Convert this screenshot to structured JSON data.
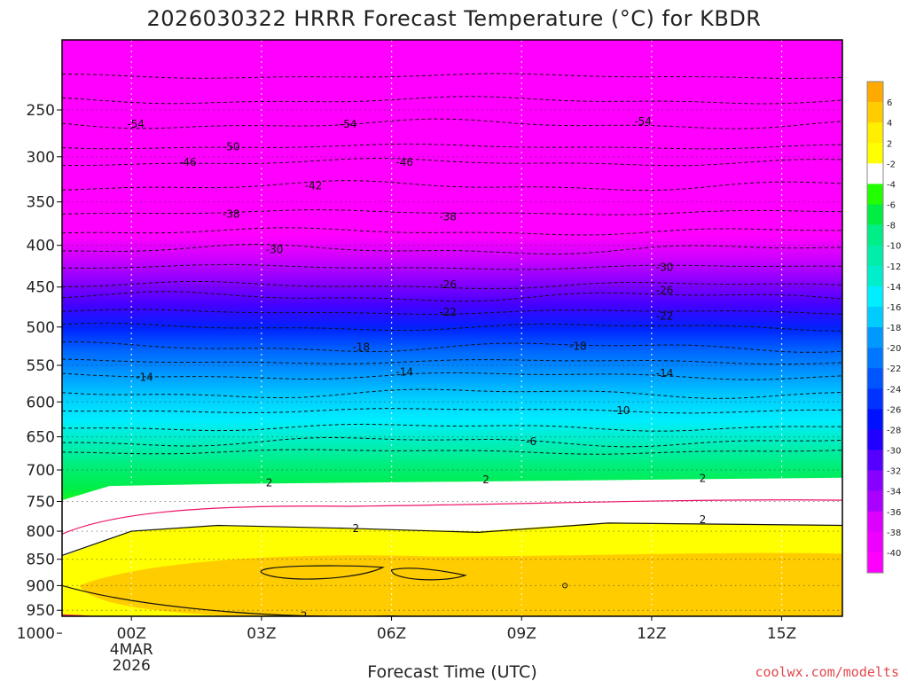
{
  "chart_data": {
    "type": "heatmap",
    "title": "2026030322 HRRR Forecast Temperature (°C) for KBDR",
    "xlabel": "Forecast Time (UTC)",
    "ylabel": "",
    "source": "coolwx.com/modelts",
    "x_range_hours": [
      -1.6,
      16.4
    ],
    "y_range_hPa": [
      1030,
      200
    ],
    "x_ticks": [
      {
        "hour": 0,
        "label": "00Z",
        "sub1": "4MAR",
        "sub2": "2026"
      },
      {
        "hour": 3,
        "label": "03Z"
      },
      {
        "hour": 6,
        "label": "06Z"
      },
      {
        "hour": 9,
        "label": "09Z"
      },
      {
        "hour": 12,
        "label": "12Z"
      },
      {
        "hour": 15,
        "label": "15Z"
      }
    ],
    "y_ticks": [
      250,
      300,
      350,
      400,
      450,
      500,
      550,
      600,
      650,
      700,
      750,
      800,
      850,
      900,
      950,
      1000
    ],
    "colorbar": {
      "levels": [
        "6",
        "4",
        "2",
        "-2",
        "-4",
        "-6",
        "-8",
        "-10",
        "-12",
        "-14",
        "-16",
        "-18",
        "-20",
        "-22",
        "-24",
        "-26",
        "-28",
        "-30",
        "-32",
        "-34",
        "-36",
        "-38",
        "-40"
      ],
      "colors": [
        "#ffaa00",
        "#ffcc00",
        "#ffee00",
        "#ffff00",
        "#ffffff",
        "#22ff00",
        "#00ee44",
        "#00ee88",
        "#00eeaa",
        "#00eecc",
        "#00eeff",
        "#00ccff",
        "#0099ff",
        "#0077ff",
        "#0055ff",
        "#0033ff",
        "#0011ff",
        "#2200ff",
        "#5500ff",
        "#8800ff",
        "#aa00ff",
        "#dd00ff",
        "#ee00ff",
        "#ff00ff"
      ]
    },
    "band_colors": {
      "ground": "#b5602c",
      "warm_core": "#ffcc00",
      "warm": "#ffff00",
      "near_freezing": "#ffffff"
    },
    "contour_labels": [
      {
        "value": "-54",
        "points": [
          [
            -0.1,
            265
          ],
          [
            4.8,
            265
          ],
          [
            11.6,
            262
          ]
        ]
      },
      {
        "value": "-50",
        "points": [
          [
            2.1,
            289
          ]
        ]
      },
      {
        "value": "-46",
        "points": [
          [
            1.1,
            306
          ],
          [
            6.1,
            306
          ]
        ]
      },
      {
        "value": "-42",
        "points": [
          [
            4.0,
            332
          ]
        ]
      },
      {
        "value": "-38",
        "points": [
          [
            2.1,
            364
          ],
          [
            7.1,
            367
          ]
        ]
      },
      {
        "value": "-30",
        "points": [
          [
            3.1,
            405
          ],
          [
            12.1,
            426
          ]
        ]
      },
      {
        "value": "-26",
        "points": [
          [
            7.1,
            447
          ],
          [
            12.1,
            454
          ]
        ]
      },
      {
        "value": "-22",
        "points": [
          [
            7.1,
            481
          ],
          [
            12.1,
            486
          ]
        ]
      },
      {
        "value": "-18",
        "points": [
          [
            5.1,
            526
          ],
          [
            10.1,
            525
          ]
        ]
      },
      {
        "value": "-14",
        "points": [
          [
            0.1,
            566
          ],
          [
            6.1,
            559
          ],
          [
            12.1,
            561
          ]
        ]
      },
      {
        "value": "-10",
        "points": [
          [
            11.1,
            612
          ]
        ]
      },
      {
        "value": "-6",
        "points": [
          [
            9.1,
            657
          ]
        ]
      },
      {
        "value": "2",
        "points": [
          [
            3.1,
            720
          ],
          [
            8.1,
            715
          ],
          [
            13.1,
            713
          ],
          [
            13.1,
            780
          ],
          [
            5.1,
            795
          ],
          [
            3.9,
            962
          ]
        ]
      }
    ]
  }
}
